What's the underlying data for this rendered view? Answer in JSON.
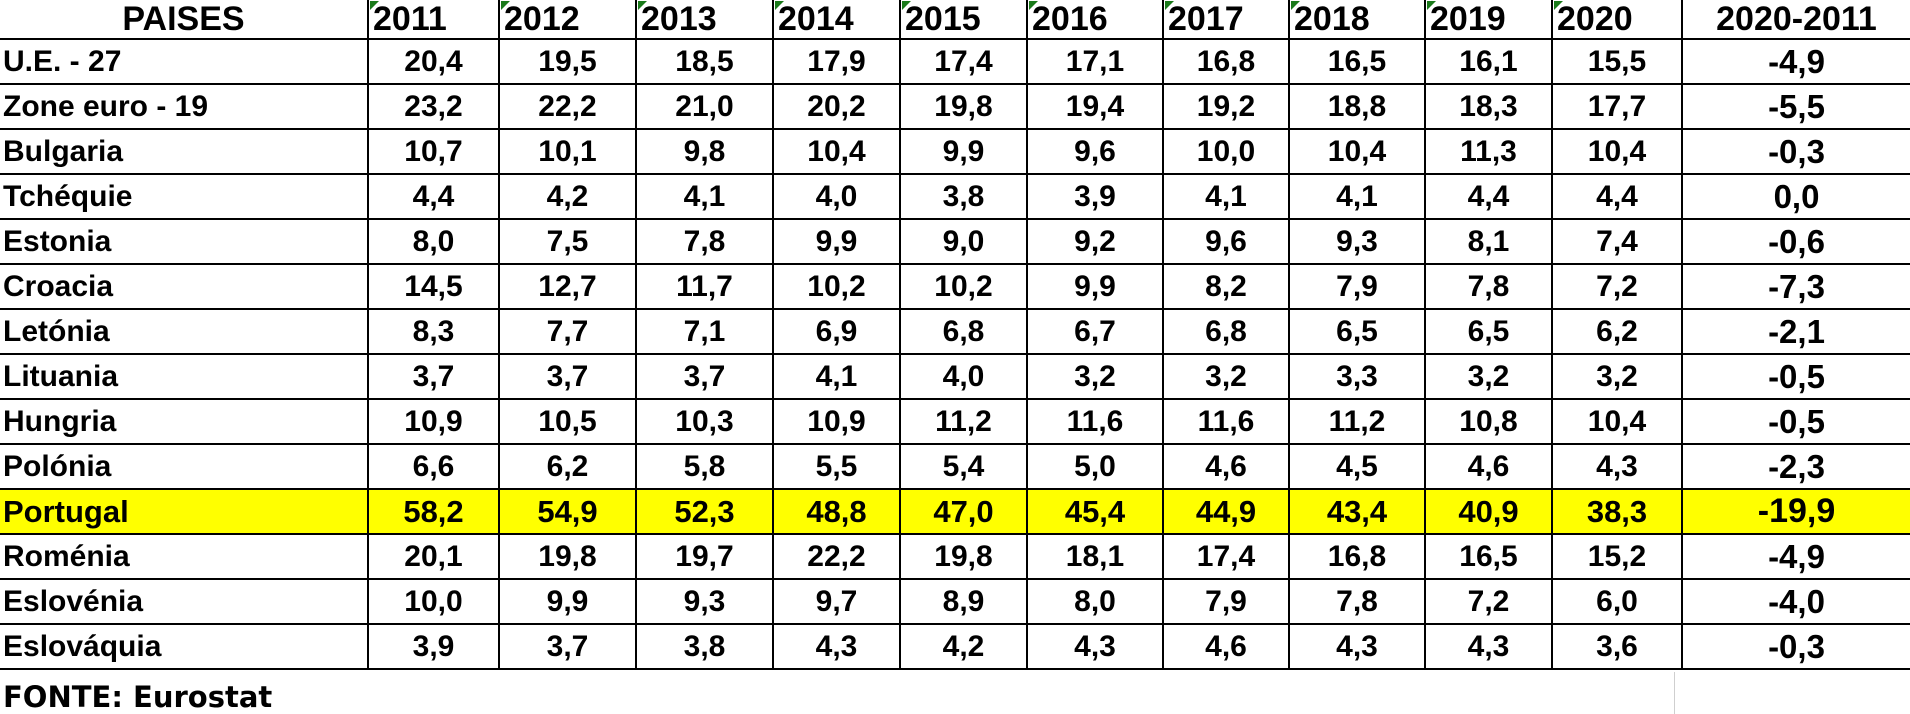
{
  "chart_data": {
    "type": "table",
    "header_label": "PAISES",
    "columns": [
      "2011",
      "2012",
      "2013",
      "2014",
      "2015",
      "2016",
      "2017",
      "2018",
      "2019",
      "2020",
      "2020-2011"
    ],
    "highlight_row": "Portugal",
    "highlight_color": "#ffff00",
    "rows": [
      {
        "name": "U.E. - 27",
        "values": [
          "20,4",
          "19,5",
          "18,5",
          "17,9",
          "17,4",
          "17,1",
          "16,8",
          "16,5",
          "16,1",
          "15,5",
          "-4,9"
        ]
      },
      {
        "name": "Zone euro - 19",
        "values": [
          "23,2",
          "22,2",
          "21,0",
          "20,2",
          "19,8",
          "19,4",
          "19,2",
          "18,8",
          "18,3",
          "17,7",
          "-5,5"
        ]
      },
      {
        "name": "Bulgaria",
        "values": [
          "10,7",
          "10,1",
          "9,8",
          "10,4",
          "9,9",
          "9,6",
          "10,0",
          "10,4",
          "11,3",
          "10,4",
          "-0,3"
        ]
      },
      {
        "name": "Tchéquie",
        "values": [
          "4,4",
          "4,2",
          "4,1",
          "4,0",
          "3,8",
          "3,9",
          "4,1",
          "4,1",
          "4,4",
          "4,4",
          "0,0"
        ]
      },
      {
        "name": "Estonia",
        "values": [
          "8,0",
          "7,5",
          "7,8",
          "9,9",
          "9,0",
          "9,2",
          "9,6",
          "9,3",
          "8,1",
          "7,4",
          "-0,6"
        ]
      },
      {
        "name": "Croacia",
        "values": [
          "14,5",
          "12,7",
          "11,7",
          "10,2",
          "10,2",
          "9,9",
          "8,2",
          "7,9",
          "7,8",
          "7,2",
          "-7,3"
        ]
      },
      {
        "name": "Letónia",
        "values": [
          "8,3",
          "7,7",
          "7,1",
          "6,9",
          "6,8",
          "6,7",
          "6,8",
          "6,5",
          "6,5",
          "6,2",
          "-2,1"
        ]
      },
      {
        "name": "Lituania",
        "values": [
          "3,7",
          "3,7",
          "3,7",
          "4,1",
          "4,0",
          "3,2",
          "3,2",
          "3,3",
          "3,2",
          "3,2",
          "-0,5"
        ]
      },
      {
        "name": "Hungria",
        "values": [
          "10,9",
          "10,5",
          "10,3",
          "10,9",
          "11,2",
          "11,6",
          "11,6",
          "11,2",
          "10,8",
          "10,4",
          "-0,5"
        ]
      },
      {
        "name": "Polónia",
        "values": [
          "6,6",
          "6,2",
          "5,8",
          "5,5",
          "5,4",
          "5,0",
          "4,6",
          "4,5",
          "4,6",
          "4,3",
          "-2,3"
        ]
      },
      {
        "name": "Portugal",
        "values": [
          "58,2",
          "54,9",
          "52,3",
          "48,8",
          "47,0",
          "45,4",
          "44,9",
          "43,4",
          "40,9",
          "38,3",
          "-19,9"
        ]
      },
      {
        "name": "Roménia",
        "values": [
          "20,1",
          "19,8",
          "19,7",
          "22,2",
          "19,8",
          "18,1",
          "17,4",
          "16,8",
          "16,5",
          "15,2",
          "-4,9"
        ]
      },
      {
        "name": "Eslovénia",
        "values": [
          "10,0",
          "9,9",
          "9,3",
          "9,7",
          "8,9",
          "8,0",
          "7,9",
          "7,8",
          "7,2",
          "6,0",
          "-4,0"
        ]
      },
      {
        "name": "Eslováquia",
        "values": [
          "3,9",
          "3,7",
          "3,8",
          "4,3",
          "4,2",
          "4,3",
          "4,6",
          "4,3",
          "4,3",
          "3,6",
          "-0,3"
        ]
      }
    ],
    "source": "FONTE: Eurostat"
  }
}
